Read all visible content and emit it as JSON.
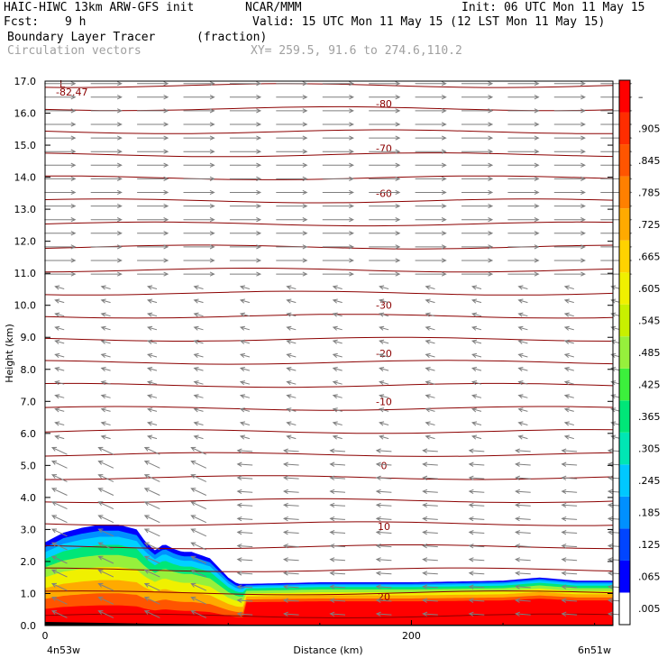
{
  "header": {
    "title_left": "HAIC-HIWC 13km ARW-GFS init",
    "title_mid": "NCAR/MMM",
    "init": "Init: 06 UTC Mon 11 May 15",
    "fcst_label": "Fcst:",
    "fcst_value": "9 h",
    "valid": "Valid: 15 UTC Mon 11 May 15 (12 LST Mon 11 May 15)",
    "field_name": "Boundary Layer Tracer",
    "field_units": "(fraction)",
    "vector_name": "Circulation vectors",
    "xy_range": "XY= 259.5, 91.6 to 274.6,110.2"
  },
  "colors": {
    "contour": "#8b0000",
    "vector": "#7f7f7f",
    "colorbar": [
      "#ffffff",
      "#0000ff",
      "#0045ff",
      "#0090ff",
      "#00c8ff",
      "#00e6b4",
      "#00e678",
      "#3cf03c",
      "#96f03c",
      "#c8f000",
      "#f0f000",
      "#ffd200",
      "#ffaa00",
      "#ff8000",
      "#ff5500",
      "#ff2d00",
      "#ff0000"
    ]
  },
  "chart_data": {
    "type": "heatmap",
    "xlabel": "Distance (km)",
    "ylabel": "Height (km)",
    "xlim": [
      0,
      310
    ],
    "ylim": [
      0,
      17
    ],
    "x_ticks": [
      {
        "value": 0,
        "label": "0"
      },
      {
        "value": 200,
        "label": "200"
      }
    ],
    "x_end_labels": {
      "left": "4n53w",
      "right": "6n51w"
    },
    "y_ticks": [
      "0.0",
      "1.0",
      "2.0",
      "3.0",
      "4.0",
      "5.0",
      "6.0",
      "7.0",
      "8.0",
      "9.0",
      "10.0",
      "11.0",
      "12.0",
      "13.0",
      "14.0",
      "15.0",
      "16.0",
      "17.0"
    ],
    "colorbar_labels": [
      ".005",
      ".065",
      ".125",
      ".185",
      ".245",
      ".305",
      ".365",
      ".425",
      ".485",
      ".545",
      ".605",
      ".665",
      ".725",
      ".785",
      ".845",
      ".905",
      "–"
    ],
    "tracer_top_profile": {
      "x": [
        0,
        10,
        20,
        30,
        40,
        50,
        55,
        60,
        65,
        70,
        75,
        80,
        90,
        100,
        105,
        110,
        150,
        200,
        250,
        270,
        290,
        310
      ],
      "top_km": [
        2.6,
        2.9,
        3.05,
        3.15,
        3.15,
        3.0,
        2.6,
        2.35,
        2.55,
        2.4,
        2.3,
        2.3,
        2.1,
        1.5,
        1.3,
        1.3,
        1.35,
        1.35,
        1.4,
        1.5,
        1.4,
        1.4
      ]
    },
    "temperature_contours": [
      {
        "label": "-80",
        "height_km": 16.3
      },
      {
        "label": "-70",
        "height_km": 14.9
      },
      {
        "label": "-60",
        "height_km": 13.5
      },
      {
        "label": "-30",
        "height_km": 10.0
      },
      {
        "label": "-20",
        "height_km": 8.5
      },
      {
        "label": "-10",
        "height_km": 7.0
      },
      {
        "label": "0",
        "height_km": 5.0
      },
      {
        "label": "10",
        "height_km": 3.1
      },
      {
        "label": "20",
        "height_km": 0.9
      }
    ],
    "min_marker": {
      "label": "L",
      "value": "-82.47"
    }
  }
}
